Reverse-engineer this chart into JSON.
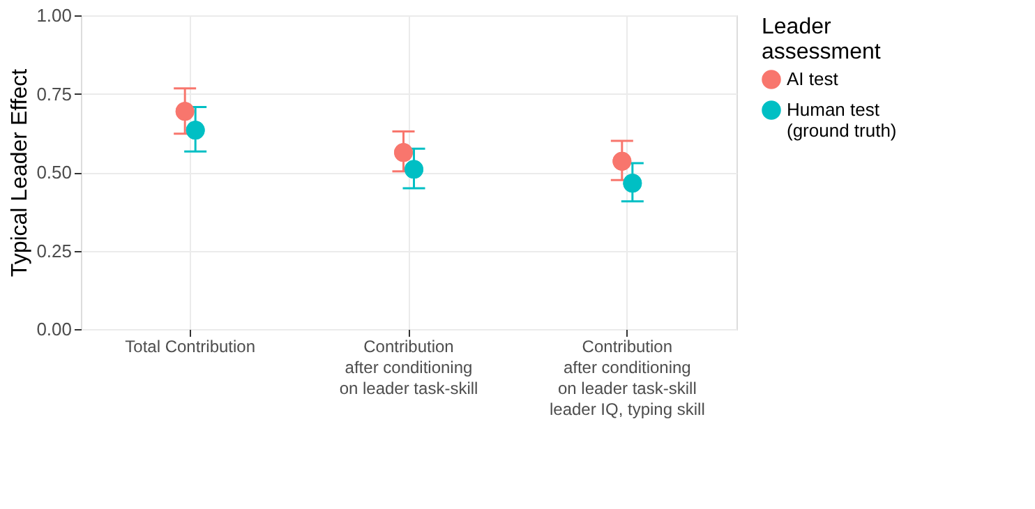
{
  "chart_data": {
    "type": "scatter",
    "ylabel": "Typical Leader Effect",
    "legend_title": "Leader\nassessment",
    "categories": [
      "Total Contribution",
      "Contribution\nafter conditioning\non leader task-skill",
      "Contribution\nafter conditioning\non leader task-skill\nleader IQ, typing skill"
    ],
    "series": [
      {
        "name": "AI test",
        "color": "#f8766d",
        "values": [
          0.694,
          0.563,
          0.535
        ],
        "errors": [
          [
            0.623,
            0.767
          ],
          [
            0.503,
            0.63
          ],
          [
            0.475,
            0.6
          ]
        ]
      },
      {
        "name": "Human test\n(ground truth)",
        "color": "#00bfc4",
        "values": [
          0.634,
          0.509,
          0.465
        ],
        "errors": [
          [
            0.566,
            0.708
          ],
          [
            0.449,
            0.575
          ],
          [
            0.407,
            0.529
          ]
        ]
      }
    ],
    "ylim": [
      0,
      1
    ],
    "yticks": [
      {
        "value": 0,
        "label": "0.00"
      },
      0.25,
      {
        "value": 0.5,
        "label": "0.50"
      },
      0.75,
      {
        "value": 1,
        "label": "1.00"
      }
    ],
    "grid": true,
    "legend": "right",
    "marker": "circle"
  }
}
